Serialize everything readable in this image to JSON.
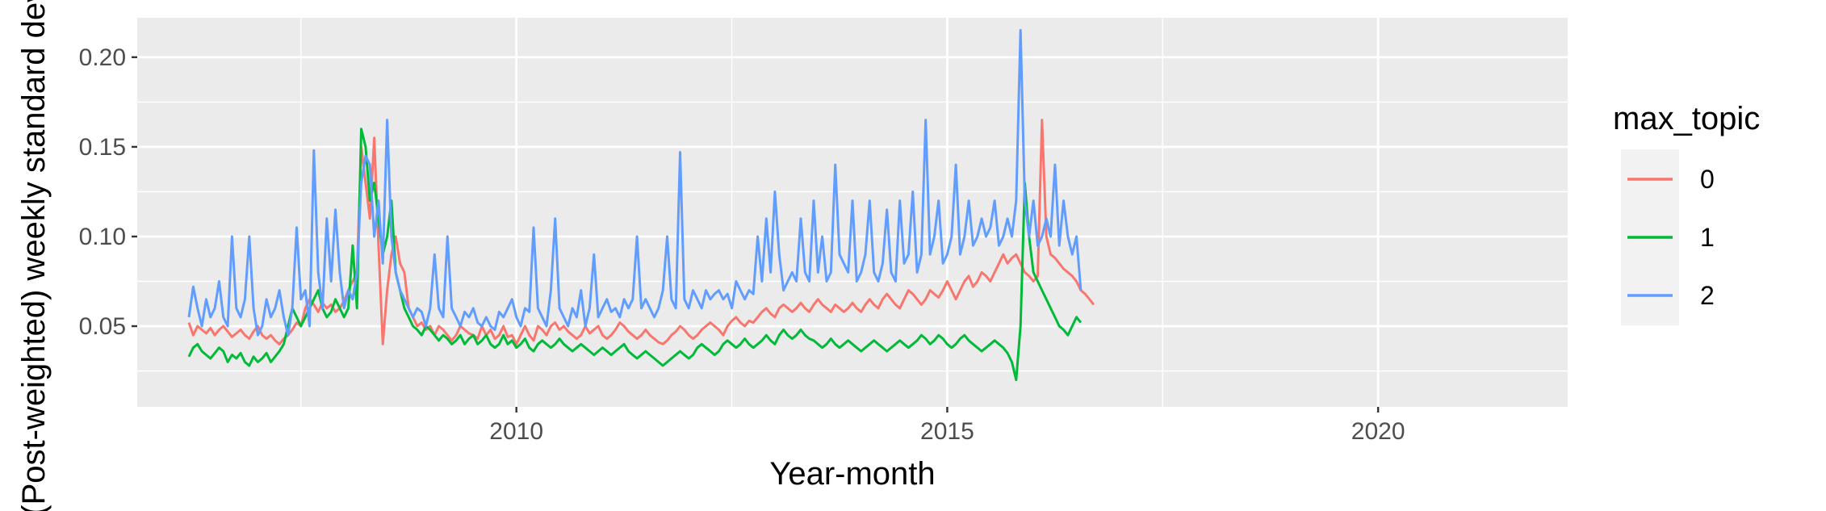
{
  "chart_data": {
    "type": "line",
    "title": "",
    "xlabel": "Year-month",
    "ylabel": "(Post-weighted) weekly standard deviation",
    "x_ticks": [
      "2010",
      "2015",
      "2020"
    ],
    "y_ticks": [
      "0.05",
      "0.10",
      "0.15",
      "0.20"
    ],
    "xlim": [
      2005.6,
      2022.2
    ],
    "ylim": [
      0.005,
      0.222
    ],
    "grid": true,
    "legend": {
      "title": "max_topic",
      "position": "right"
    },
    "colors": {
      "0": "#F8766D",
      "1": "#00BA38",
      "2": "#619CFF",
      "panel": "#EBEBEB",
      "grid": "#FFFFFF"
    },
    "x_start": 2006.2,
    "x_step": 0.05,
    "series": [
      {
        "name": "0",
        "color": "#F8766D",
        "values": [
          0.052,
          0.045,
          0.05,
          0.048,
          0.046,
          0.049,
          0.045,
          0.048,
          0.05,
          0.047,
          0.044,
          0.046,
          0.048,
          0.045,
          0.043,
          0.047,
          0.05,
          0.045,
          0.043,
          0.045,
          0.042,
          0.04,
          0.043,
          0.045,
          0.048,
          0.052,
          0.05,
          0.06,
          0.065,
          0.062,
          0.058,
          0.063,
          0.06,
          0.062,
          0.058,
          0.06,
          0.064,
          0.07,
          0.075,
          0.08,
          0.15,
          0.13,
          0.11,
          0.155,
          0.095,
          0.04,
          0.07,
          0.09,
          0.1,
          0.085,
          0.08,
          0.06,
          0.055,
          0.05,
          0.052,
          0.048,
          0.05,
          0.045,
          0.05,
          0.048,
          0.045,
          0.042,
          0.045,
          0.05,
          0.048,
          0.046,
          0.045,
          0.043,
          0.05,
          0.045,
          0.048,
          0.043,
          0.045,
          0.05,
          0.044,
          0.045,
          0.04,
          0.045,
          0.05,
          0.045,
          0.042,
          0.05,
          0.048,
          0.045,
          0.05,
          0.052,
          0.048,
          0.05,
          0.047,
          0.045,
          0.043,
          0.045,
          0.05,
          0.046,
          0.048,
          0.05,
          0.045,
          0.043,
          0.045,
          0.048,
          0.052,
          0.05,
          0.047,
          0.045,
          0.043,
          0.045,
          0.048,
          0.045,
          0.043,
          0.041,
          0.04,
          0.042,
          0.045,
          0.047,
          0.05,
          0.048,
          0.045,
          0.043,
          0.045,
          0.048,
          0.05,
          0.052,
          0.05,
          0.048,
          0.045,
          0.05,
          0.053,
          0.055,
          0.052,
          0.05,
          0.053,
          0.052,
          0.055,
          0.058,
          0.06,
          0.057,
          0.055,
          0.06,
          0.062,
          0.06,
          0.058,
          0.06,
          0.063,
          0.06,
          0.058,
          0.062,
          0.065,
          0.062,
          0.06,
          0.058,
          0.062,
          0.06,
          0.058,
          0.06,
          0.063,
          0.06,
          0.058,
          0.062,
          0.065,
          0.062,
          0.06,
          0.065,
          0.068,
          0.065,
          0.062,
          0.06,
          0.065,
          0.07,
          0.068,
          0.065,
          0.062,
          0.065,
          0.07,
          0.068,
          0.066,
          0.07,
          0.075,
          0.07,
          0.065,
          0.07,
          0.075,
          0.078,
          0.072,
          0.075,
          0.08,
          0.078,
          0.075,
          0.08,
          0.085,
          0.09,
          0.085,
          0.088,
          0.09,
          0.085,
          0.08,
          0.078,
          0.075,
          0.078,
          0.165,
          0.1,
          0.09,
          0.088,
          0.085,
          0.082,
          0.08,
          0.078,
          0.075,
          0.07,
          0.068,
          0.065,
          0.062
        ]
      },
      {
        "name": "1",
        "color": "#00BA38",
        "values": [
          0.033,
          0.038,
          0.04,
          0.036,
          0.034,
          0.032,
          0.035,
          0.038,
          0.036,
          0.03,
          0.034,
          0.032,
          0.035,
          0.03,
          0.028,
          0.033,
          0.03,
          0.032,
          0.035,
          0.03,
          0.033,
          0.036,
          0.04,
          0.05,
          0.06,
          0.055,
          0.05,
          0.055,
          0.06,
          0.065,
          0.07,
          0.06,
          0.055,
          0.058,
          0.065,
          0.06,
          0.055,
          0.06,
          0.095,
          0.06,
          0.16,
          0.15,
          0.12,
          0.13,
          0.11,
          0.09,
          0.1,
          0.12,
          0.08,
          0.07,
          0.06,
          0.055,
          0.05,
          0.048,
          0.045,
          0.05,
          0.048,
          0.045,
          0.042,
          0.045,
          0.043,
          0.04,
          0.042,
          0.045,
          0.04,
          0.043,
          0.045,
          0.04,
          0.042,
          0.045,
          0.04,
          0.038,
          0.04,
          0.045,
          0.04,
          0.042,
          0.038,
          0.04,
          0.043,
          0.038,
          0.036,
          0.04,
          0.042,
          0.04,
          0.038,
          0.04,
          0.043,
          0.04,
          0.038,
          0.036,
          0.038,
          0.04,
          0.038,
          0.036,
          0.034,
          0.036,
          0.038,
          0.036,
          0.034,
          0.036,
          0.038,
          0.04,
          0.036,
          0.034,
          0.032,
          0.034,
          0.036,
          0.034,
          0.032,
          0.03,
          0.028,
          0.03,
          0.032,
          0.034,
          0.036,
          0.034,
          0.032,
          0.034,
          0.038,
          0.04,
          0.038,
          0.036,
          0.034,
          0.036,
          0.04,
          0.042,
          0.04,
          0.038,
          0.04,
          0.043,
          0.04,
          0.038,
          0.04,
          0.042,
          0.045,
          0.042,
          0.04,
          0.045,
          0.048,
          0.045,
          0.043,
          0.045,
          0.048,
          0.045,
          0.043,
          0.042,
          0.04,
          0.038,
          0.04,
          0.043,
          0.04,
          0.038,
          0.04,
          0.042,
          0.04,
          0.038,
          0.036,
          0.038,
          0.04,
          0.042,
          0.04,
          0.038,
          0.036,
          0.038,
          0.04,
          0.042,
          0.04,
          0.038,
          0.04,
          0.042,
          0.045,
          0.043,
          0.04,
          0.042,
          0.045,
          0.043,
          0.04,
          0.038,
          0.04,
          0.043,
          0.045,
          0.042,
          0.04,
          0.038,
          0.036,
          0.038,
          0.04,
          0.042,
          0.04,
          0.038,
          0.035,
          0.03,
          0.02,
          0.05,
          0.13,
          0.1,
          0.08,
          0.075,
          0.07,
          0.065,
          0.06,
          0.055,
          0.05,
          0.048,
          0.045,
          0.05,
          0.055,
          0.052
        ]
      },
      {
        "name": "2",
        "color": "#619CFF",
        "values": [
          0.055,
          0.072,
          0.06,
          0.05,
          0.065,
          0.055,
          0.06,
          0.075,
          0.055,
          0.05,
          0.1,
          0.06,
          0.055,
          0.065,
          0.1,
          0.06,
          0.045,
          0.05,
          0.065,
          0.055,
          0.06,
          0.07,
          0.055,
          0.045,
          0.06,
          0.105,
          0.065,
          0.07,
          0.05,
          0.148,
          0.08,
          0.06,
          0.11,
          0.075,
          0.115,
          0.08,
          0.06,
          0.07,
          0.065,
          0.08,
          0.13,
          0.145,
          0.14,
          0.1,
          0.12,
          0.085,
          0.165,
          0.1,
          0.08,
          0.07,
          0.065,
          0.06,
          0.055,
          0.06,
          0.058,
          0.05,
          0.06,
          0.09,
          0.06,
          0.055,
          0.1,
          0.06,
          0.055,
          0.05,
          0.058,
          0.055,
          0.06,
          0.052,
          0.05,
          0.055,
          0.05,
          0.048,
          0.058,
          0.055,
          0.06,
          0.065,
          0.055,
          0.05,
          0.06,
          0.058,
          0.105,
          0.06,
          0.055,
          0.05,
          0.07,
          0.11,
          0.06,
          0.055,
          0.05,
          0.06,
          0.055,
          0.07,
          0.05,
          0.06,
          0.09,
          0.055,
          0.06,
          0.065,
          0.058,
          0.06,
          0.055,
          0.065,
          0.06,
          0.065,
          0.1,
          0.06,
          0.065,
          0.06,
          0.055,
          0.06,
          0.07,
          0.1,
          0.065,
          0.06,
          0.147,
          0.065,
          0.06,
          0.07,
          0.065,
          0.06,
          0.07,
          0.065,
          0.068,
          0.07,
          0.065,
          0.068,
          0.06,
          0.075,
          0.07,
          0.065,
          0.07,
          0.068,
          0.1,
          0.075,
          0.11,
          0.08,
          0.125,
          0.09,
          0.07,
          0.075,
          0.08,
          0.075,
          0.11,
          0.08,
          0.075,
          0.12,
          0.08,
          0.1,
          0.075,
          0.08,
          0.14,
          0.09,
          0.085,
          0.08,
          0.12,
          0.075,
          0.08,
          0.09,
          0.12,
          0.08,
          0.075,
          0.085,
          0.115,
          0.08,
          0.075,
          0.12,
          0.085,
          0.09,
          0.125,
          0.08,
          0.09,
          0.165,
          0.09,
          0.1,
          0.12,
          0.085,
          0.09,
          0.1,
          0.14,
          0.09,
          0.1,
          0.12,
          0.095,
          0.1,
          0.11,
          0.1,
          0.105,
          0.12,
          0.095,
          0.1,
          0.11,
          0.1,
          0.12,
          0.215,
          0.12,
          0.1,
          0.12,
          0.095,
          0.1,
          0.11,
          0.1,
          0.14,
          0.095,
          0.12,
          0.1,
          0.09,
          0.1,
          0.07
        ]
      }
    ]
  }
}
